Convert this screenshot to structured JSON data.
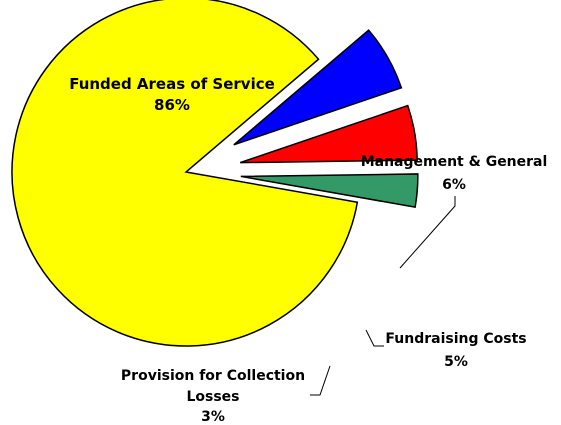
{
  "chart_data": {
    "type": "pie",
    "exploded": true,
    "colors_matter": true,
    "slices": [
      {
        "label_lines": [
          "Funded Areas of Service"
        ],
        "value": 86,
        "value_label": "86%",
        "color": "#ffff00"
      },
      {
        "label_lines": [
          "Management & General"
        ],
        "value": 6,
        "value_label": "6%",
        "color": "#0000ff"
      },
      {
        "label_lines": [
          "Fundraising Costs"
        ],
        "value": 5,
        "value_label": "5%",
        "color": "#ff0000"
      },
      {
        "label_lines": [
          "Provision for Collection",
          "Losses"
        ],
        "value": 3,
        "value_label": "3%",
        "color": "#339966"
      }
    ]
  }
}
